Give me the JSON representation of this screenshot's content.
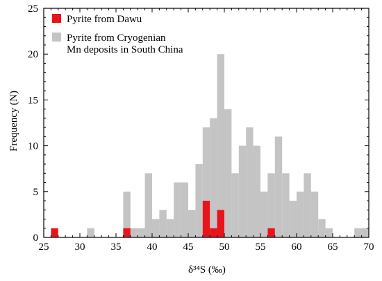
{
  "chart_data": {
    "type": "bar",
    "xlabel": "δ³⁴S (‰)",
    "ylabel": "Frequency (N)",
    "xlim": [
      25,
      70
    ],
    "ylim": [
      0,
      25
    ],
    "bin_width": 1,
    "xticks": [
      25,
      30,
      35,
      40,
      45,
      50,
      55,
      60,
      65,
      70
    ],
    "yticks": [
      0,
      5,
      10,
      15,
      20,
      25
    ],
    "legend_position": "top-left",
    "grid": false,
    "series": [
      {
        "name": "Pyrite from Cryogenian Mn deposits in South China",
        "color": "#c4c4c4",
        "bins": [
          {
            "x0": 31,
            "value": 1
          },
          {
            "x0": 36,
            "value": 5
          },
          {
            "x0": 37,
            "value": 1
          },
          {
            "x0": 38,
            "value": 1
          },
          {
            "x0": 39,
            "value": 7
          },
          {
            "x0": 40,
            "value": 2
          },
          {
            "x0": 41,
            "value": 3
          },
          {
            "x0": 42,
            "value": 2
          },
          {
            "x0": 43,
            "value": 6
          },
          {
            "x0": 44,
            "value": 6
          },
          {
            "x0": 45,
            "value": 3
          },
          {
            "x0": 46,
            "value": 8
          },
          {
            "x0": 47,
            "value": 12
          },
          {
            "x0": 48,
            "value": 13
          },
          {
            "x0": 49,
            "value": 20
          },
          {
            "x0": 50,
            "value": 14
          },
          {
            "x0": 51,
            "value": 7
          },
          {
            "x0": 52,
            "value": 10
          },
          {
            "x0": 53,
            "value": 12
          },
          {
            "x0": 54,
            "value": 10
          },
          {
            "x0": 55,
            "value": 5
          },
          {
            "x0": 56,
            "value": 7
          },
          {
            "x0": 57,
            "value": 11
          },
          {
            "x0": 58,
            "value": 7
          },
          {
            "x0": 59,
            "value": 4
          },
          {
            "x0": 60,
            "value": 5
          },
          {
            "x0": 61,
            "value": 7
          },
          {
            "x0": 62,
            "value": 5
          },
          {
            "x0": 63,
            "value": 2
          },
          {
            "x0": 64,
            "value": 1
          },
          {
            "x0": 68,
            "value": 1
          },
          {
            "x0": 69,
            "value": 1
          }
        ]
      },
      {
        "name": "Pyrite from Dawu",
        "color": "#e8141c",
        "bins": [
          {
            "x0": 26,
            "value": 1
          },
          {
            "x0": 36,
            "value": 1
          },
          {
            "x0": 47,
            "value": 4
          },
          {
            "x0": 48,
            "value": 1
          },
          {
            "x0": 49,
            "value": 3
          },
          {
            "x0": 56,
            "value": 1
          }
        ]
      }
    ],
    "legend": [
      {
        "series": 1,
        "lines": [
          "Pyrite from Dawu"
        ]
      },
      {
        "series": 0,
        "lines": [
          "Pyrite from Cryogenian",
          "Mn deposits in South China"
        ]
      }
    ]
  }
}
